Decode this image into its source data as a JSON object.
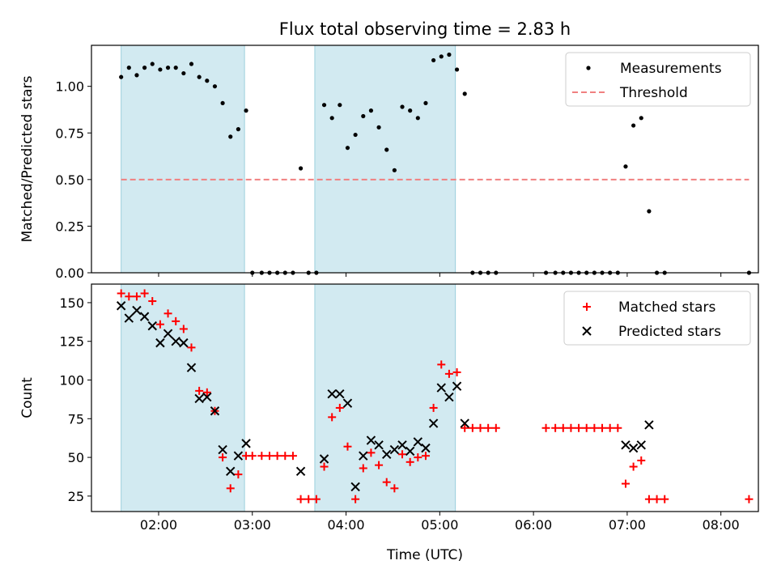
{
  "chart_data": [
    {
      "type": "scatter",
      "title": "Flux total observing time = 2.83 h",
      "xlabel": "",
      "ylabel": "Matched/Predicted stars",
      "xlim": [
        "01:17",
        "08:24"
      ],
      "ylim": [
        0,
        1.22
      ],
      "yticks": [
        0.0,
        0.25,
        0.5,
        0.75,
        1.0
      ],
      "ytick_labels": [
        "0.00",
        "0.25",
        "0.50",
        "0.75",
        "1.00"
      ],
      "shaded_intervals": [
        [
          "01:36",
          "02:55"
        ],
        [
          "03:40",
          "05:10"
        ]
      ],
      "legend_position": "top-right",
      "series": [
        {
          "name": "Measurements",
          "kind": "points",
          "color": "#000000",
          "points": [
            [
              "01:36",
              1.05
            ],
            [
              "01:41",
              1.1
            ],
            [
              "01:46",
              1.06
            ],
            [
              "01:51",
              1.1
            ],
            [
              "01:56",
              1.12
            ],
            [
              "02:01",
              1.09
            ],
            [
              "02:06",
              1.1
            ],
            [
              "02:11",
              1.1
            ],
            [
              "02:16",
              1.07
            ],
            [
              "02:21",
              1.12
            ],
            [
              "02:26",
              1.05
            ],
            [
              "02:31",
              1.03
            ],
            [
              "02:36",
              1.0
            ],
            [
              "02:41",
              0.91
            ],
            [
              "02:46",
              0.73
            ],
            [
              "02:51",
              0.77
            ],
            [
              "02:56",
              0.87
            ],
            [
              "03:00",
              0.0
            ],
            [
              "03:06",
              0.0
            ],
            [
              "03:11",
              0.0
            ],
            [
              "03:16",
              0.0
            ],
            [
              "03:21",
              0.0
            ],
            [
              "03:26",
              0.0
            ],
            [
              "03:31",
              0.56
            ],
            [
              "03:36",
              0.0
            ],
            [
              "03:41",
              0.0
            ],
            [
              "03:46",
              0.9
            ],
            [
              "03:51",
              0.83
            ],
            [
              "03:56",
              0.9
            ],
            [
              "04:01",
              0.67
            ],
            [
              "04:06",
              0.74
            ],
            [
              "04:11",
              0.84
            ],
            [
              "04:16",
              0.87
            ],
            [
              "04:21",
              0.78
            ],
            [
              "04:26",
              0.66
            ],
            [
              "04:31",
              0.55
            ],
            [
              "04:36",
              0.89
            ],
            [
              "04:41",
              0.87
            ],
            [
              "04:46",
              0.83
            ],
            [
              "04:51",
              0.91
            ],
            [
              "04:56",
              1.14
            ],
            [
              "05:01",
              1.16
            ],
            [
              "05:06",
              1.17
            ],
            [
              "05:11",
              1.09
            ],
            [
              "05:16",
              0.96
            ],
            [
              "05:21",
              0.0
            ],
            [
              "05:26",
              0.0
            ],
            [
              "05:31",
              0.0
            ],
            [
              "05:36",
              0.0
            ],
            [
              "06:08",
              0.0
            ],
            [
              "06:14",
              0.0
            ],
            [
              "06:19",
              0.0
            ],
            [
              "06:24",
              0.0
            ],
            [
              "06:29",
              0.0
            ],
            [
              "06:34",
              0.0
            ],
            [
              "06:39",
              0.0
            ],
            [
              "06:44",
              0.0
            ],
            [
              "06:49",
              0.0
            ],
            [
              "06:54",
              0.0
            ],
            [
              "06:59",
              0.57
            ],
            [
              "07:04",
              0.79
            ],
            [
              "07:09",
              0.83
            ],
            [
              "07:14",
              0.33
            ],
            [
              "07:19",
              0.0
            ],
            [
              "07:24",
              0.0
            ],
            [
              "08:18",
              0.0
            ]
          ]
        },
        {
          "name": "Threshold",
          "kind": "dashed-line",
          "color": "#f08080",
          "points": [
            [
              "01:36",
              0.5
            ],
            [
              "08:18",
              0.5
            ]
          ]
        }
      ]
    },
    {
      "type": "scatter",
      "title": "",
      "xlabel": "Time (UTC)",
      "ylabel": "Count",
      "xlim": [
        "01:17",
        "08:24"
      ],
      "ylim": [
        15,
        162
      ],
      "yticks": [
        25,
        50,
        75,
        100,
        125,
        150
      ],
      "ytick_labels": [
        "25",
        "50",
        "75",
        "100",
        "125",
        "150"
      ],
      "xticks": [
        "02:00",
        "03:00",
        "04:00",
        "05:00",
        "06:00",
        "07:00",
        "08:00"
      ],
      "xtick_labels": [
        "02:00",
        "03:00",
        "04:00",
        "05:00",
        "06:00",
        "07:00",
        "08:00"
      ],
      "shaded_intervals": [
        [
          "01:36",
          "02:55"
        ],
        [
          "03:40",
          "05:10"
        ]
      ],
      "legend_position": "top-right",
      "series": [
        {
          "name": "Matched stars",
          "marker": "plus",
          "color": "#ff0000",
          "points": [
            [
              "01:36",
              156
            ],
            [
              "01:41",
              154
            ],
            [
              "01:46",
              154
            ],
            [
              "01:51",
              156
            ],
            [
              "01:56",
              151
            ],
            [
              "02:01",
              136
            ],
            [
              "02:06",
              143
            ],
            [
              "02:11",
              138
            ],
            [
              "02:16",
              133
            ],
            [
              "02:21",
              121
            ],
            [
              "02:26",
              93
            ],
            [
              "02:31",
              92
            ],
            [
              "02:36",
              80
            ],
            [
              "02:41",
              50
            ],
            [
              "02:46",
              30
            ],
            [
              "02:51",
              39
            ],
            [
              "02:56",
              51
            ],
            [
              "03:00",
              51
            ],
            [
              "03:06",
              51
            ],
            [
              "03:11",
              51
            ],
            [
              "03:16",
              51
            ],
            [
              "03:21",
              51
            ],
            [
              "03:26",
              51
            ],
            [
              "03:31",
              23
            ],
            [
              "03:36",
              23
            ],
            [
              "03:41",
              23
            ],
            [
              "03:46",
              44
            ],
            [
              "03:51",
              76
            ],
            [
              "03:56",
              82
            ],
            [
              "04:01",
              57
            ],
            [
              "04:06",
              23
            ],
            [
              "04:11",
              43
            ],
            [
              "04:16",
              53
            ],
            [
              "04:21",
              45
            ],
            [
              "04:26",
              34
            ],
            [
              "04:31",
              30
            ],
            [
              "04:36",
              52
            ],
            [
              "04:41",
              47
            ],
            [
              "04:46",
              50
            ],
            [
              "04:51",
              51
            ],
            [
              "04:56",
              82
            ],
            [
              "05:01",
              110
            ],
            [
              "05:06",
              104
            ],
            [
              "05:11",
              105
            ],
            [
              "05:16",
              69
            ],
            [
              "05:21",
              69
            ],
            [
              "05:26",
              69
            ],
            [
              "05:31",
              69
            ],
            [
              "05:36",
              69
            ],
            [
              "06:08",
              69
            ],
            [
              "06:14",
              69
            ],
            [
              "06:19",
              69
            ],
            [
              "06:24",
              69
            ],
            [
              "06:29",
              69
            ],
            [
              "06:34",
              69
            ],
            [
              "06:39",
              69
            ],
            [
              "06:44",
              69
            ],
            [
              "06:49",
              69
            ],
            [
              "06:54",
              69
            ],
            [
              "06:59",
              33
            ],
            [
              "07:04",
              44
            ],
            [
              "07:09",
              48
            ],
            [
              "07:14",
              23
            ],
            [
              "07:19",
              23
            ],
            [
              "07:24",
              23
            ],
            [
              "08:18",
              23
            ]
          ]
        },
        {
          "name": "Predicted stars",
          "marker": "cross",
          "color": "#000000",
          "points": [
            [
              "01:36",
              148
            ],
            [
              "01:41",
              140
            ],
            [
              "01:46",
              145
            ],
            [
              "01:51",
              141
            ],
            [
              "01:56",
              135
            ],
            [
              "02:01",
              124
            ],
            [
              "02:06",
              130
            ],
            [
              "02:11",
              125
            ],
            [
              "02:16",
              124
            ],
            [
              "02:21",
              108
            ],
            [
              "02:26",
              88
            ],
            [
              "02:31",
              89
            ],
            [
              "02:36",
              80
            ],
            [
              "02:41",
              55
            ],
            [
              "02:46",
              41
            ],
            [
              "02:51",
              51
            ],
            [
              "02:56",
              59
            ],
            [
              "03:31",
              41
            ],
            [
              "03:46",
              49
            ],
            [
              "03:51",
              91
            ],
            [
              "03:56",
              91
            ],
            [
              "04:01",
              85
            ],
            [
              "04:06",
              31
            ],
            [
              "04:11",
              51
            ],
            [
              "04:16",
              61
            ],
            [
              "04:21",
              58
            ],
            [
              "04:26",
              52
            ],
            [
              "04:31",
              55
            ],
            [
              "04:36",
              58
            ],
            [
              "04:41",
              54
            ],
            [
              "04:46",
              60
            ],
            [
              "04:51",
              56
            ],
            [
              "04:56",
              72
            ],
            [
              "05:01",
              95
            ],
            [
              "05:06",
              89
            ],
            [
              "05:11",
              96
            ],
            [
              "05:16",
              72
            ],
            [
              "06:59",
              58
            ],
            [
              "07:04",
              56
            ],
            [
              "07:09",
              58
            ],
            [
              "07:14",
              71
            ]
          ]
        }
      ]
    }
  ]
}
